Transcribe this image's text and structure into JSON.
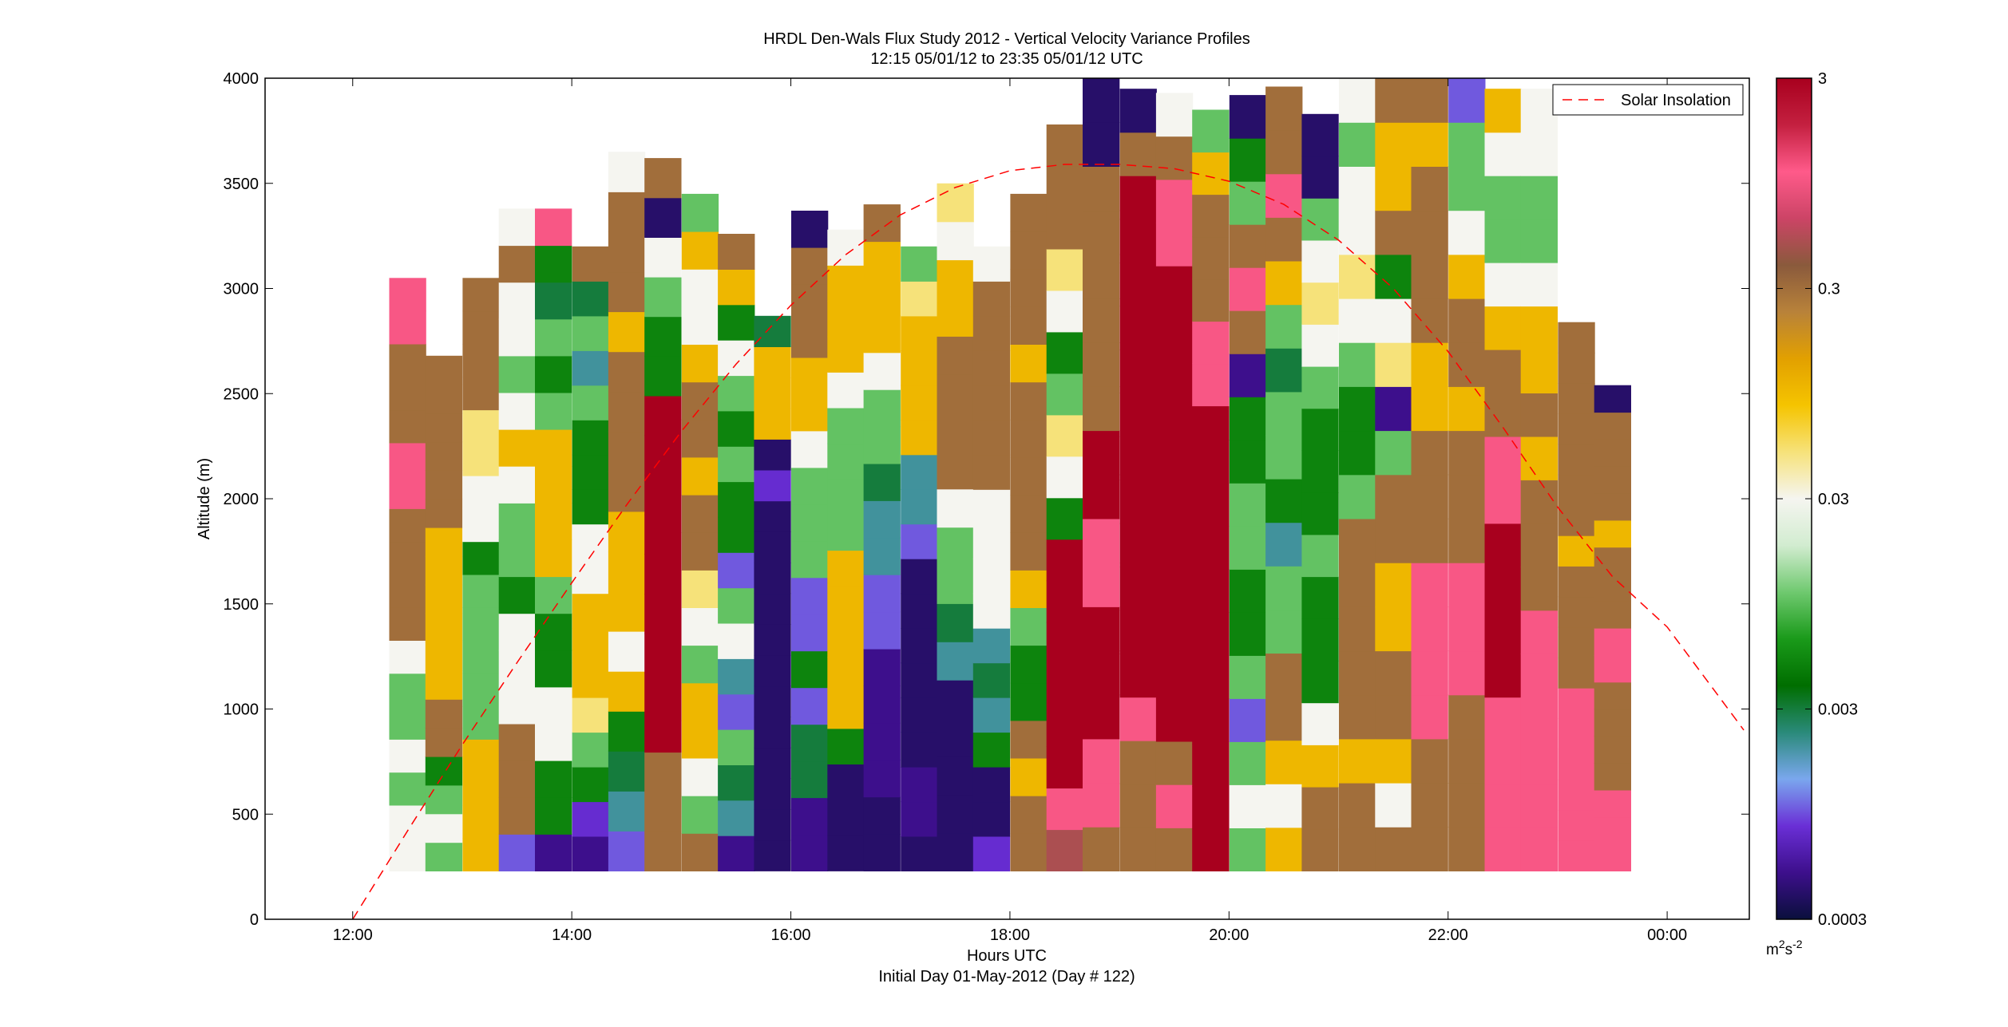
{
  "chart_data": {
    "type": "heatmap",
    "title": "HRDL Den-Wals Flux Study 2012 - Vertical Velocity Variance Profiles",
    "subtitle": "12:15 05/01/12 to 23:35 05/01/12  UTC",
    "xlabel": "Hours UTC",
    "xlabel_line2": "Initial Day 01-May-2012 (Day # 122)",
    "ylabel": "Altitude (m)",
    "xlim": [
      11.2,
      24.75
    ],
    "ylim": [
      0,
      4000
    ],
    "x_ticks": [
      12,
      14,
      16,
      18,
      20,
      22,
      24
    ],
    "x_tick_labels": [
      "12:00",
      "14:00",
      "16:00",
      "18:00",
      "20:00",
      "22:00",
      "00:00"
    ],
    "y_ticks": [
      0,
      500,
      1000,
      1500,
      2000,
      2500,
      3000,
      3500,
      4000
    ],
    "y_tick_labels": [
      "0",
      "500",
      "1000",
      "1500",
      "2000",
      "2500",
      "3000",
      "3500",
      "4000"
    ],
    "colorbar": {
      "scale": "log",
      "range": [
        0.0003,
        3
      ],
      "ticks": [
        0.0003,
        0.003,
        0.03,
        0.3,
        3
      ],
      "tick_labels": [
        "0.0003",
        "0.003",
        "0.03",
        "0.3",
        "3"
      ],
      "unit_base": "m",
      "unit_sup1": "2",
      "unit_mid": "s",
      "unit_sup2": "-2",
      "colors": [
        "#0a0f3c",
        "#3d0f8c",
        "#6a2fd6",
        "#7aa7ee",
        "#2a8a7a",
        "#006e00",
        "#1a9a1a",
        "#6fc96f",
        "#d2ecd0",
        "#f5f5f0",
        "#f6e27a",
        "#f5c400",
        "#e2a000",
        "#b8823a",
        "#8a5a3c",
        "#cc4466",
        "#ff5a8a",
        "#c42040",
        "#a8001e"
      ]
    },
    "legend": {
      "label": "Solar Insolation",
      "position": "top-right",
      "color": "#ff0000"
    },
    "profiles": [
      {
        "time": 12.5,
        "top": 3050,
        "bottom": 230,
        "values": [
          0.03,
          0.03,
          0.01,
          0.03,
          0.01,
          0.01,
          0.03,
          0.3,
          0.3,
          0.3,
          0.3,
          1.0,
          1.0,
          0.3,
          0.3,
          0.3,
          1.0,
          1.0
        ]
      },
      {
        "time": 12.83,
        "top": 2680,
        "bottom": 230,
        "values": [
          0.01,
          0.03,
          0.01,
          0.005,
          0.3,
          0.3,
          0.1,
          0.1,
          0.1,
          0.1,
          0.1,
          0.1,
          0.3,
          0.3,
          0.3,
          0.3,
          0.3,
          0.3
        ]
      },
      {
        "time": 13.17,
        "top": 3050,
        "bottom": 230,
        "values": [
          0.1,
          0.1,
          0.1,
          0.1,
          0.01,
          0.01,
          0.01,
          0.01,
          0.01,
          0.005,
          0.03,
          0.03,
          0.05,
          0.05,
          0.3,
          0.3,
          0.3,
          0.3
        ]
      },
      {
        "time": 13.5,
        "top": 3380,
        "bottom": 230,
        "values": [
          0.001,
          0.3,
          0.3,
          0.3,
          0.03,
          0.03,
          0.03,
          0.005,
          0.01,
          0.01,
          0.03,
          0.1,
          0.03,
          0.01,
          0.03,
          0.03,
          0.3,
          0.03
        ]
      },
      {
        "time": 13.83,
        "top": 3380,
        "bottom": 230,
        "values": [
          0.0005,
          0.005,
          0.005,
          0.03,
          0.03,
          0.005,
          0.005,
          0.01,
          0.1,
          0.1,
          0.1,
          0.1,
          0.01,
          0.005,
          0.01,
          0.003,
          0.005,
          1.0
        ]
      },
      {
        "time": 14.17,
        "top": 3200,
        "bottom": 230,
        "values": [
          0.0005,
          0.0008,
          0.005,
          0.01,
          0.05,
          0.1,
          0.1,
          0.1,
          0.03,
          0.03,
          0.005,
          0.005,
          0.005,
          0.01,
          0.002,
          0.01,
          0.003,
          0.3
        ]
      },
      {
        "time": 14.5,
        "top": 3650,
        "bottom": 230,
        "values": [
          0.001,
          0.002,
          0.003,
          0.005,
          0.1,
          0.03,
          0.1,
          0.1,
          0.1,
          0.3,
          0.3,
          0.3,
          0.3,
          0.1,
          0.3,
          0.3,
          0.3,
          0.03
        ]
      },
      {
        "time": 14.83,
        "top": 3620,
        "bottom": 230,
        "values": [
          0.3,
          0.3,
          0.3,
          3.0,
          3.0,
          3.0,
          3.0,
          3.0,
          3.0,
          3.0,
          3.0,
          3.0,
          0.005,
          0.005,
          0.01,
          0.03,
          0.0004,
          0.3
        ]
      },
      {
        "time": 15.17,
        "top": 3450,
        "bottom": 230,
        "values": [
          0.3,
          0.01,
          0.03,
          0.1,
          0.1,
          0.01,
          0.03,
          0.05,
          0.3,
          0.3,
          0.1,
          0.3,
          0.3,
          0.1,
          0.03,
          0.03,
          0.1,
          0.01
        ]
      },
      {
        "time": 15.5,
        "top": 3260,
        "bottom": 230,
        "values": [
          0.0005,
          0.002,
          0.003,
          0.01,
          0.001,
          0.002,
          0.03,
          0.01,
          0.001,
          0.005,
          0.005,
          0.01,
          0.005,
          0.01,
          0.03,
          0.005,
          0.1,
          0.3
        ]
      },
      {
        "time": 15.83,
        "top": 2870,
        "bottom": 230,
        "values": [
          0.0004,
          0.0004,
          0.0004,
          0.0004,
          0.0004,
          0.0004,
          0.0004,
          0.0004,
          0.0004,
          0.0004,
          0.0004,
          0.0004,
          0.0008,
          0.0004,
          0.1,
          0.1,
          0.1,
          0.003
        ]
      },
      {
        "time": 16.17,
        "top": 3370,
        "bottom": 230,
        "values": [
          0.0005,
          0.0005,
          0.003,
          0.003,
          0.001,
          0.005,
          0.001,
          0.001,
          0.01,
          0.01,
          0.01,
          0.03,
          0.1,
          0.1,
          0.3,
          0.3,
          0.3,
          0.0004
        ]
      },
      {
        "time": 16.5,
        "top": 3280,
        "bottom": 230,
        "values": [
          0.0004,
          0.0004,
          0.0004,
          0.005,
          0.1,
          0.1,
          0.1,
          0.1,
          0.1,
          0.01,
          0.01,
          0.01,
          0.01,
          0.03,
          0.1,
          0.1,
          0.1,
          0.03
        ]
      },
      {
        "time": 16.83,
        "top": 3400,
        "bottom": 230,
        "values": [
          0.0004,
          0.0004,
          0.0005,
          0.0005,
          0.0005,
          0.0005,
          0.001,
          0.001,
          0.002,
          0.002,
          0.003,
          0.01,
          0.01,
          0.03,
          0.1,
          0.1,
          0.1,
          0.3
        ]
      },
      {
        "time": 17.17,
        "top": 3200,
        "bottom": 230,
        "values": [
          0.0004,
          0.0005,
          0.0005,
          0.0004,
          0.0004,
          0.0004,
          0.0004,
          0.0004,
          0.0004,
          0.001,
          0.002,
          0.002,
          0.1,
          0.1,
          0.1,
          0.1,
          0.05,
          0.01
        ]
      },
      {
        "time": 17.5,
        "top": 3500,
        "bottom": 230,
        "values": [
          0.0004,
          0.0004,
          0.0004,
          0.0004,
          0.0004,
          0.002,
          0.003,
          0.01,
          0.01,
          0.03,
          0.3,
          0.3,
          0.3,
          0.3,
          0.1,
          0.1,
          0.03,
          0.05
        ]
      },
      {
        "time": 17.83,
        "top": 3200,
        "bottom": 230,
        "values": [
          0.0008,
          0.0004,
          0.0004,
          0.005,
          0.002,
          0.003,
          0.002,
          0.03,
          0.03,
          0.03,
          0.03,
          0.3,
          0.3,
          0.3,
          0.3,
          0.3,
          0.3,
          0.03
        ]
      },
      {
        "time": 18.17,
        "top": 3450,
        "bottom": 230,
        "values": [
          0.3,
          0.3,
          0.1,
          0.3,
          0.005,
          0.005,
          0.01,
          0.1,
          0.3,
          0.3,
          0.3,
          0.3,
          0.3,
          0.1,
          0.3,
          0.3,
          0.3,
          0.3
        ]
      },
      {
        "time": 18.5,
        "top": 3780,
        "bottom": 230,
        "values": [
          0.5,
          1.0,
          3.0,
          3.0,
          3.0,
          3.0,
          3.0,
          3.0,
          0.005,
          0.03,
          0.05,
          0.01,
          0.005,
          0.03,
          0.05,
          0.3,
          0.3,
          0.3
        ]
      },
      {
        "time": 18.83,
        "top": 4000,
        "bottom": 230,
        "values": [
          0.3,
          1.0,
          1.0,
          3.0,
          3.0,
          3.0,
          1.0,
          1.0,
          3.0,
          3.0,
          0.3,
          0.3,
          0.3,
          0.3,
          0.3,
          0.3,
          0.0004,
          0.0004
        ]
      },
      {
        "time": 19.17,
        "top": 3950,
        "bottom": 230,
        "values": [
          0.3,
          0.3,
          0.3,
          1.0,
          3.0,
          3.0,
          3.0,
          3.0,
          3.0,
          3.0,
          3.0,
          3.0,
          3.0,
          3.0,
          3.0,
          3.0,
          0.3,
          0.0004
        ]
      },
      {
        "time": 19.5,
        "top": 3930,
        "bottom": 230,
        "values": [
          0.3,
          1.0,
          0.3,
          3.0,
          3.0,
          3.0,
          3.0,
          3.0,
          3.0,
          3.0,
          3.0,
          3.0,
          3.0,
          3.0,
          1.0,
          1.0,
          0.3,
          0.03
        ]
      },
      {
        "time": 19.83,
        "top": 3850,
        "bottom": 230,
        "values": [
          3.0,
          3.0,
          3.0,
          3.0,
          3.0,
          3.0,
          3.0,
          3.0,
          3.0,
          3.0,
          3.0,
          1.0,
          1.0,
          0.3,
          0.3,
          0.3,
          0.1,
          0.01
        ]
      },
      {
        "time": 20.17,
        "top": 3920,
        "bottom": 230,
        "values": [
          0.01,
          0.03,
          0.01,
          0.001,
          0.01,
          0.005,
          0.005,
          0.01,
          0.01,
          0.005,
          0.005,
          0.0005,
          0.3,
          1.0,
          0.3,
          0.01,
          0.005,
          0.0004
        ]
      },
      {
        "time": 20.5,
        "top": 3960,
        "bottom": 230,
        "values": [
          0.1,
          0.03,
          0.1,
          0.3,
          0.3,
          0.01,
          0.01,
          0.002,
          0.005,
          0.01,
          0.01,
          0.003,
          0.01,
          0.1,
          0.3,
          1.0,
          0.3,
          0.3
        ]
      },
      {
        "time": 20.83,
        "top": 3830,
        "bottom": 230,
        "values": [
          0.3,
          0.3,
          0.1,
          0.03,
          0.005,
          0.005,
          0.005,
          0.01,
          0.005,
          0.005,
          0.005,
          0.01,
          0.03,
          0.05,
          0.03,
          0.01,
          0.0004,
          0.0004
        ]
      },
      {
        "time": 21.17,
        "top": 4000,
        "bottom": 230,
        "values": [
          0.3,
          0.3,
          0.1,
          0.3,
          0.3,
          0.3,
          0.3,
          0.3,
          0.01,
          0.005,
          0.005,
          0.01,
          0.03,
          0.05,
          0.03,
          0.03,
          0.01,
          0.03
        ]
      },
      {
        "time": 21.5,
        "top": 4000,
        "bottom": 230,
        "values": [
          0.3,
          0.03,
          0.1,
          0.3,
          0.3,
          0.1,
          0.1,
          0.3,
          0.3,
          0.01,
          0.0005,
          0.05,
          0.03,
          0.005,
          0.3,
          0.1,
          0.1,
          0.3
        ]
      },
      {
        "time": 21.83,
        "top": 4000,
        "bottom": 230,
        "values": [
          0.3,
          0.3,
          0.3,
          1.0,
          1.0,
          1.0,
          1.0,
          0.3,
          0.3,
          0.3,
          0.1,
          0.1,
          0.3,
          0.3,
          0.3,
          0.3,
          0.1,
          0.3
        ]
      },
      {
        "time": 22.17,
        "top": 4000,
        "bottom": 230,
        "values": [
          0.3,
          0.3,
          0.3,
          0.3,
          1.0,
          1.0,
          1.0,
          0.3,
          0.3,
          0.3,
          0.1,
          0.3,
          0.3,
          0.1,
          0.03,
          0.01,
          0.01,
          0.001
        ]
      },
      {
        "time": 22.5,
        "top": 3950,
        "bottom": 230,
        "values": [
          1.0,
          1.0,
          1.0,
          1.0,
          3.0,
          3.0,
          3.0,
          3.0,
          1.0,
          1.0,
          0.3,
          0.3,
          0.1,
          0.03,
          0.01,
          0.01,
          0.03,
          0.1
        ]
      },
      {
        "time": 22.83,
        "top": 3950,
        "bottom": 230,
        "values": [
          1.0,
          1.0,
          1.0,
          1.0,
          1.0,
          1.0,
          0.3,
          0.3,
          0.3,
          0.1,
          0.3,
          0.1,
          0.1,
          0.03,
          0.01,
          0.01,
          0.03,
          0.03
        ]
      },
      {
        "time": 23.17,
        "top": 2840,
        "bottom": 230,
        "values": [
          1.0,
          1.0,
          1.0,
          1.0,
          1.0,
          1.0,
          0.3,
          0.3,
          0.3,
          0.3,
          0.1,
          0.3,
          0.3,
          0.3,
          0.3,
          0.3,
          0.3,
          0.3
        ]
      },
      {
        "time": 23.5,
        "top": 2540,
        "bottom": 230,
        "values": [
          1.0,
          1.0,
          1.0,
          0.3,
          0.3,
          0.3,
          0.3,
          1.0,
          1.0,
          0.3,
          0.3,
          0.3,
          0.1,
          0.3,
          0.3,
          0.3,
          0.3,
          0.0004
        ]
      }
    ],
    "solar_insolation": {
      "x": [
        12.0,
        12.5,
        13.0,
        13.5,
        14.0,
        14.5,
        15.0,
        15.5,
        16.0,
        16.5,
        17.0,
        17.5,
        18.0,
        18.5,
        19.0,
        19.5,
        20.0,
        20.5,
        21.0,
        21.5,
        22.0,
        22.5,
        23.0,
        23.5,
        24.0,
        24.5,
        24.7
      ],
      "y": [
        0,
        420,
        830,
        1220,
        1600,
        1970,
        2320,
        2640,
        2920,
        3160,
        3350,
        3480,
        3560,
        3590,
        3590,
        3570,
        3510,
        3400,
        3230,
        3000,
        2700,
        2340,
        1960,
        1630,
        1390,
        1040,
        900
      ]
    }
  }
}
